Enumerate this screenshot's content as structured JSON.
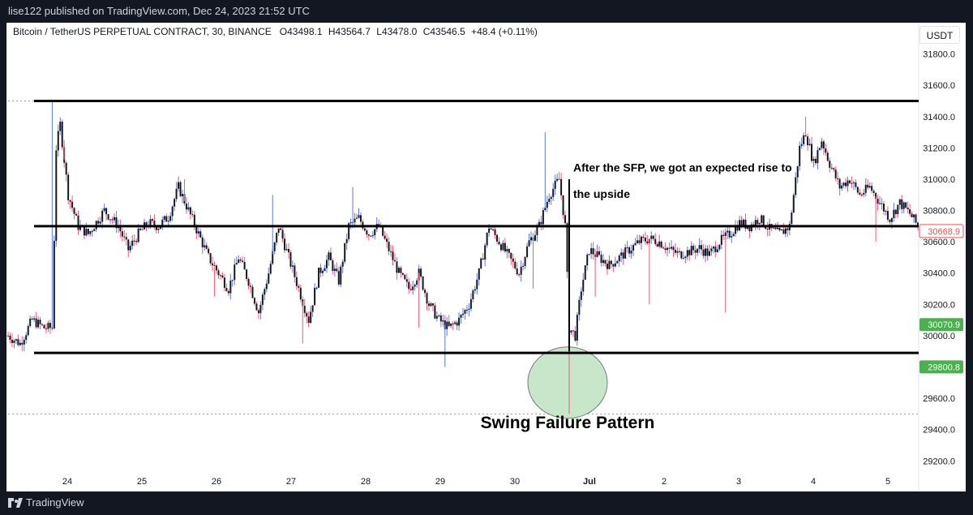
{
  "header": {
    "published_text": "lise122 published on TradingView.com, Dec 24, 2023 21:52 UTC"
  },
  "symbol": {
    "name": "Bitcoin / TetherUS PERPETUAL CONTRACT, 30, BINANCE",
    "o_label": "O",
    "o": "43498.1",
    "h_label": "H",
    "h": "43564.7",
    "l_label": "L",
    "l": "43478.0",
    "c_label": "C",
    "c": "43546.5",
    "change": "+48.4 (+0.11%)"
  },
  "currency_button": "USDT",
  "footer": {
    "brand": "TradingView"
  },
  "colors": {
    "up": "#5b7bd5",
    "down": "#ef5b7a",
    "body": "#131722",
    "circle": "#c8e6c9"
  },
  "chart_data": {
    "type": "candlestick",
    "x_tick_labels": [
      "24",
      "25",
      "26",
      "27",
      "28",
      "29",
      "30",
      "Jul",
      "2",
      "3",
      "4",
      "5"
    ],
    "y_tick_labels": [
      "29200.0",
      "29400.0",
      "29600.0",
      "29800.0",
      "30000.0",
      "30200.0",
      "30400.0",
      "30600.0",
      "30800.0",
      "31000.0",
      "31200.0",
      "31400.0",
      "31600.0",
      "31800.0"
    ],
    "ylim": [
      29020,
      32000
    ],
    "horizontal_levels": [
      31500,
      30700,
      29890
    ],
    "dotted_levels": [
      31500,
      29500
    ],
    "price_tags": [
      {
        "label": "30668.9",
        "value": 30668.9,
        "style": "outline",
        "color": "#ef5350"
      },
      {
        "label": "30070.9",
        "value": 30070.9,
        "style": "filled",
        "color": "#4caf50"
      },
      {
        "label": "29800.8",
        "value": 29800.8,
        "style": "filled",
        "color": "#4caf50"
      }
    ],
    "annotations": [
      {
        "text": "After the SFP, we got an expected rise to",
        "kind": "note"
      },
      {
        "text": "the upside",
        "kind": "note"
      },
      {
        "text": "Swing Failure Pattern",
        "kind": "label"
      }
    ],
    "wick_low": 29500,
    "candle_path": [
      [
        0,
        30000
      ],
      [
        6,
        29950
      ],
      [
        12,
        30100
      ],
      [
        18,
        30050
      ],
      [
        22,
        30050
      ],
      [
        24,
        31200
      ],
      [
        26,
        31350
      ],
      [
        30,
        30900
      ],
      [
        35,
        30700
      ],
      [
        40,
        30650
      ],
      [
        48,
        30800
      ],
      [
        55,
        30700
      ],
      [
        60,
        30550
      ],
      [
        65,
        30650
      ],
      [
        70,
        30720
      ],
      [
        75,
        30700
      ],
      [
        80,
        30760
      ],
      [
        85,
        30950
      ],
      [
        90,
        30800
      ],
      [
        95,
        30650
      ],
      [
        100,
        30500
      ],
      [
        105,
        30400
      ],
      [
        110,
        30300
      ],
      [
        115,
        30500
      ],
      [
        120,
        30350
      ],
      [
        125,
        30150
      ],
      [
        130,
        30400
      ],
      [
        135,
        30700
      ],
      [
        140,
        30500
      ],
      [
        145,
        30300
      ],
      [
        150,
        30100
      ],
      [
        155,
        30400
      ],
      [
        160,
        30500
      ],
      [
        165,
        30350
      ],
      [
        170,
        30700
      ],
      [
        175,
        30750
      ],
      [
        180,
        30650
      ],
      [
        185,
        30700
      ],
      [
        190,
        30550
      ],
      [
        195,
        30400
      ],
      [
        200,
        30300
      ],
      [
        205,
        30400
      ],
      [
        210,
        30200
      ],
      [
        215,
        30100
      ],
      [
        220,
        30050
      ],
      [
        225,
        30100
      ],
      [
        230,
        30200
      ],
      [
        235,
        30400
      ],
      [
        240,
        30700
      ],
      [
        245,
        30600
      ],
      [
        250,
        30500
      ],
      [
        255,
        30400
      ],
      [
        260,
        30600
      ],
      [
        265,
        30700
      ],
      [
        270,
        30900
      ],
      [
        275,
        31000
      ],
      [
        278,
        30700
      ],
      [
        280,
        30050
      ],
      [
        283,
        30000
      ],
      [
        286,
        30300
      ],
      [
        290,
        30550
      ],
      [
        295,
        30500
      ],
      [
        300,
        30450
      ],
      [
        305,
        30500
      ],
      [
        310,
        30550
      ],
      [
        315,
        30600
      ],
      [
        320,
        30620
      ],
      [
        325,
        30600
      ],
      [
        330,
        30550
      ],
      [
        335,
        30520
      ],
      [
        340,
        30540
      ],
      [
        345,
        30560
      ],
      [
        350,
        30520
      ],
      [
        355,
        30600
      ],
      [
        360,
        30650
      ],
      [
        365,
        30720
      ],
      [
        370,
        30700
      ],
      [
        375,
        30750
      ],
      [
        380,
        30680
      ],
      [
        385,
        30650
      ],
      [
        390,
        30700
      ],
      [
        395,
        31200
      ],
      [
        398,
        31300
      ],
      [
        402,
        31100
      ],
      [
        406,
        31250
      ],
      [
        410,
        31100
      ],
      [
        415,
        30950
      ],
      [
        420,
        31000
      ],
      [
        425,
        30900
      ],
      [
        430,
        30950
      ],
      [
        435,
        30850
      ],
      [
        440,
        30750
      ],
      [
        445,
        30850
      ],
      [
        450,
        30780
      ],
      [
        454,
        30700
      ]
    ],
    "spike_markers": [
      [
        22,
        31500,
        "up"
      ],
      [
        28,
        31250,
        "down"
      ],
      [
        88,
        31000,
        "down"
      ],
      [
        103,
        30250,
        "down"
      ],
      [
        132,
        30900,
        "up"
      ],
      [
        147,
        29950,
        "down"
      ],
      [
        172,
        30950,
        "up"
      ],
      [
        205,
        30050,
        "down"
      ],
      [
        218,
        29800,
        "up"
      ],
      [
        268,
        31300,
        "up"
      ],
      [
        262,
        30300,
        "down"
      ],
      [
        293,
        30250,
        "down"
      ],
      [
        320,
        30200,
        "down"
      ],
      [
        358,
        30150,
        "down"
      ],
      [
        398,
        31400,
        "down"
      ],
      [
        433,
        30600,
        "down"
      ]
    ]
  }
}
